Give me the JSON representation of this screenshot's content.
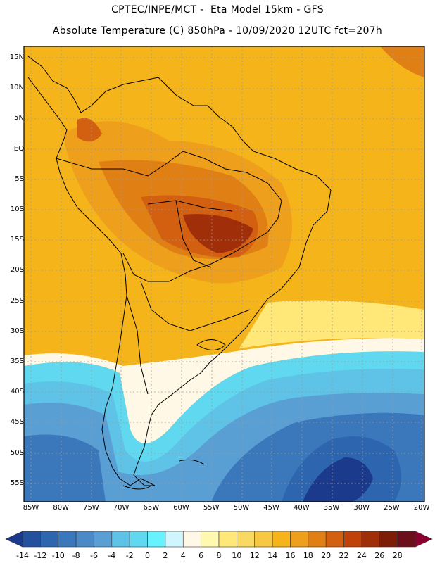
{
  "header": {
    "line1": "CPTEC/INPE/MCT -  Eta Model 15km - GFS",
    "line2": "Absolute Temperature (C) 850hPa - 10/09/2020 12UTC fct=207h"
  },
  "map": {
    "lat_labels": [
      "15N",
      "10N",
      "5N",
      "EQ",
      "5S",
      "10S",
      "15S",
      "20S",
      "25S",
      "30S",
      "35S",
      "40S",
      "45S",
      "50S",
      "55S"
    ],
    "lon_labels": [
      "85W",
      "80W",
      "75W",
      "70W",
      "65W",
      "60W",
      "55W",
      "50W",
      "45W",
      "40W",
      "35W",
      "30W",
      "25W",
      "20W"
    ],
    "grid": true,
    "field": "Absolute Temperature",
    "units": "C",
    "level": "850hPa"
  },
  "colorbar": {
    "labels": [
      "-14",
      "-12",
      "-10",
      "-8",
      "-6",
      "-4",
      "-2",
      "0",
      "2",
      "4",
      "6",
      "8",
      "10",
      "12",
      "14",
      "16",
      "18",
      "20",
      "22",
      "24",
      "26",
      "28"
    ],
    "colors": [
      "#1b3a8c",
      "#24519e",
      "#2d66ae",
      "#3a78bb",
      "#4b8ac6",
      "#5a9fd4",
      "#5ec3e6",
      "#5fd8f0",
      "#66f2ff",
      "#cff6ff",
      "#fff8e6",
      "#fff8b0",
      "#ffe877",
      "#fad963",
      "#f7c842",
      "#f5b51a",
      "#ee9f1c",
      "#e07f14",
      "#d35f10",
      "#c0420a",
      "#a02e09",
      "#7d1d08",
      "#6b0f1a",
      "#8c0030"
    ]
  }
}
